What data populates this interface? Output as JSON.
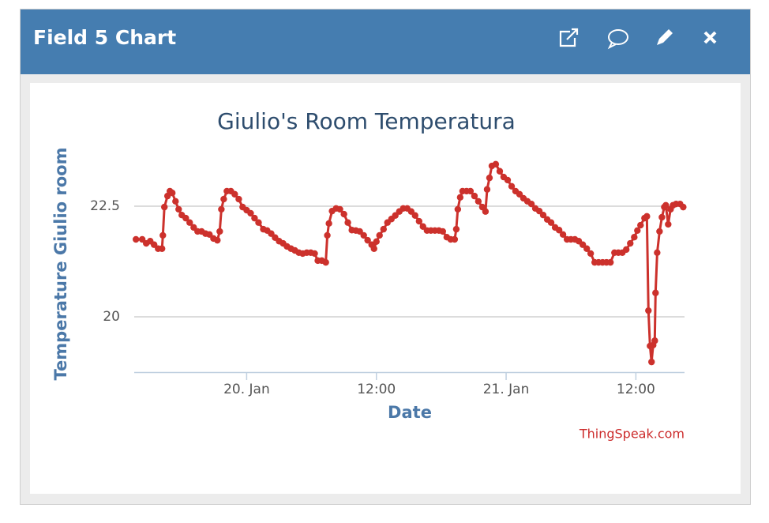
{
  "panel": {
    "title": "Field 5 Chart"
  },
  "chart_data": {
    "type": "line",
    "title": "Giulio's Room Temperatura",
    "x_label": "Date",
    "y_label": "Temperature Giulio room",
    "credit": "ThingSpeak.com",
    "color": "#cc312c",
    "markers": true,
    "grid": true,
    "xlim": [
      -10.4,
      40.5
    ],
    "xticks": [
      {
        "value": 0,
        "label": "20. Jan"
      },
      {
        "value": 12,
        "label": "12:00"
      },
      {
        "value": 24,
        "label": "21. Jan"
      },
      {
        "value": 36,
        "label": "12:00"
      }
    ],
    "ylim": [
      18.75,
      23.75
    ],
    "yticks": [
      20,
      22.5
    ],
    "x": [
      -10.24,
      -9.66,
      -9.29,
      -8.92,
      -8.56,
      -8.19,
      -7.83,
      -7.75,
      -7.61,
      -7.32,
      -7.1,
      -6.88,
      -6.58,
      -6.29,
      -6.0,
      -5.63,
      -5.27,
      -4.9,
      -4.54,
      -4.17,
      -3.8,
      -3.44,
      -3.07,
      -2.71,
      -2.49,
      -2.34,
      -2.12,
      -1.83,
      -1.46,
      -1.1,
      -0.73,
      -0.37,
      0,
      0.37,
      0.73,
      1.1,
      1.54,
      1.9,
      2.27,
      2.63,
      3.0,
      3.37,
      3.73,
      4.1,
      4.46,
      4.83,
      5.19,
      5.56,
      5.93,
      6.29,
      6.58,
      6.95,
      7.32,
      7.46,
      7.61,
      7.9,
      8.27,
      8.63,
      9.0,
      9.36,
      9.73,
      10.1,
      10.46,
      10.83,
      11.19,
      11.56,
      11.78,
      12.0,
      12.29,
      12.66,
      13.02,
      13.39,
      13.75,
      14.12,
      14.48,
      14.85,
      15.22,
      15.58,
      15.95,
      16.31,
      16.68,
      17.04,
      17.41,
      17.78,
      18.14,
      18.51,
      18.87,
      19.24,
      19.39,
      19.53,
      19.75,
      19.97,
      20.34,
      20.7,
      21.07,
      21.43,
      21.8,
      22.09,
      22.24,
      22.46,
      22.68,
      23.04,
      23.41,
      23.77,
      24.14,
      24.51,
      24.87,
      25.24,
      25.6,
      25.97,
      26.34,
      26.7,
      27.07,
      27.43,
      27.8,
      28.16,
      28.53,
      28.9,
      29.26,
      29.63,
      29.99,
      30.36,
      30.72,
      31.09,
      31.46,
      31.82,
      32.19,
      32.55,
      32.92,
      33.28,
      33.65,
      34.02,
      34.38,
      34.75,
      35.11,
      35.48,
      35.85,
      36.14,
      36.43,
      36.8,
      37.02,
      37.16,
      37.31,
      37.45,
      37.6,
      37.75,
      37.82,
      37.97,
      38.19,
      38.41,
      38.63,
      38.77,
      38.99,
      39.21,
      39.43,
      39.72,
      40.09,
      40.38
    ],
    "values": [
      21.75,
      21.75,
      21.66,
      21.71,
      21.63,
      21.54,
      21.54,
      21.84,
      22.48,
      22.73,
      22.84,
      22.8,
      22.61,
      22.43,
      22.3,
      22.23,
      22.13,
      22.02,
      21.93,
      21.93,
      21.88,
      21.86,
      21.77,
      21.73,
      21.93,
      22.43,
      22.66,
      22.84,
      22.84,
      22.77,
      22.66,
      22.48,
      22.41,
      22.34,
      22.23,
      22.13,
      21.98,
      21.95,
      21.88,
      21.79,
      21.71,
      21.66,
      21.59,
      21.54,
      21.5,
      21.45,
      21.43,
      21.45,
      21.45,
      21.43,
      21.27,
      21.27,
      21.23,
      21.84,
      22.11,
      22.39,
      22.45,
      22.43,
      22.32,
      22.13,
      21.96,
      21.95,
      21.93,
      21.84,
      21.73,
      21.63,
      21.54,
      21.7,
      21.84,
      21.98,
      22.13,
      22.21,
      22.29,
      22.38,
      22.45,
      22.45,
      22.38,
      22.29,
      22.16,
      22.04,
      21.95,
      21.95,
      21.95,
      21.95,
      21.93,
      21.8,
      21.75,
      21.75,
      21.98,
      22.43,
      22.7,
      22.84,
      22.84,
      22.84,
      22.73,
      22.61,
      22.48,
      22.38,
      22.88,
      23.14,
      23.41,
      23.45,
      23.29,
      23.16,
      23.09,
      22.95,
      22.84,
      22.77,
      22.68,
      22.61,
      22.55,
      22.45,
      22.39,
      22.3,
      22.2,
      22.13,
      22.02,
      21.96,
      21.86,
      21.75,
      21.75,
      21.75,
      21.71,
      21.63,
      21.54,
      21.43,
      21.23,
      21.23,
      21.23,
      21.23,
      21.23,
      21.45,
      21.45,
      21.45,
      21.52,
      21.66,
      21.8,
      21.95,
      22.07,
      22.23,
      22.27,
      20.14,
      19.34,
      18.98,
      19.36,
      19.46,
      20.54,
      21.45,
      21.93,
      22.25,
      22.48,
      22.52,
      22.09,
      22.43,
      22.52,
      22.55,
      22.55,
      22.48
    ]
  }
}
